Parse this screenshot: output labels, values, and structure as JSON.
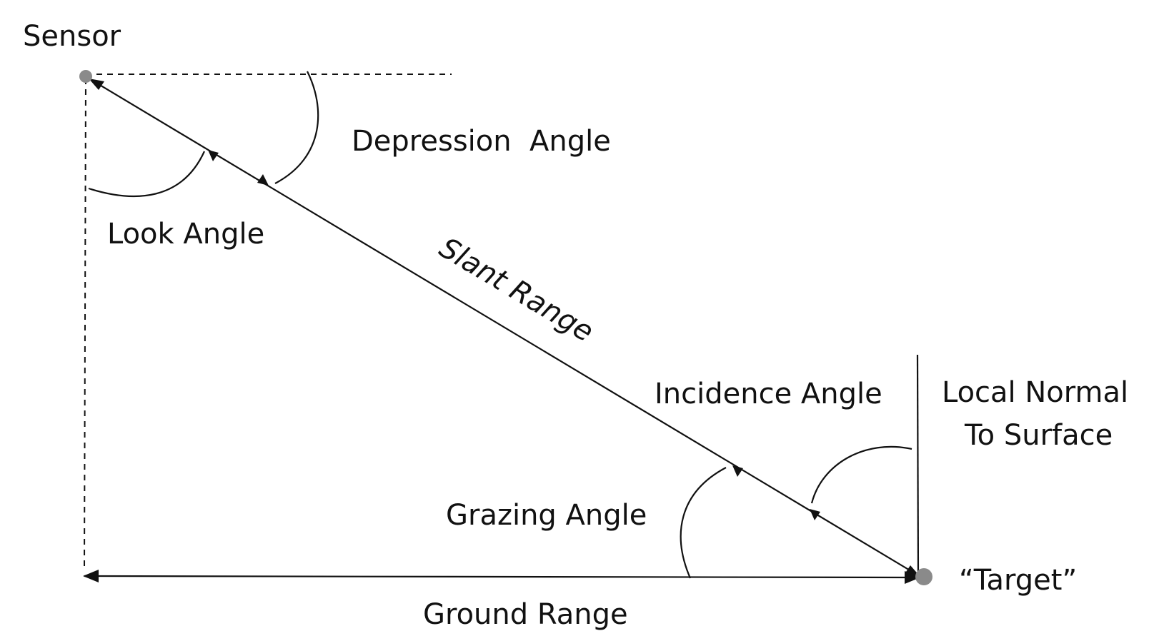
{
  "labels": {
    "sensor": "Sensor",
    "depression_angle": "Depression  Angle",
    "look_angle": "Look Angle",
    "slant_range": "Slant Range",
    "incidence_angle": "Incidence Angle",
    "local_normal_line1": "Local Normal",
    "local_normal_line2": "To Surface",
    "grazing_angle": "Grazing Angle",
    "target": "“Target”",
    "ground_range": "Ground Range"
  },
  "colors": {
    "line": "#111111",
    "point": "#8a8a8a"
  }
}
